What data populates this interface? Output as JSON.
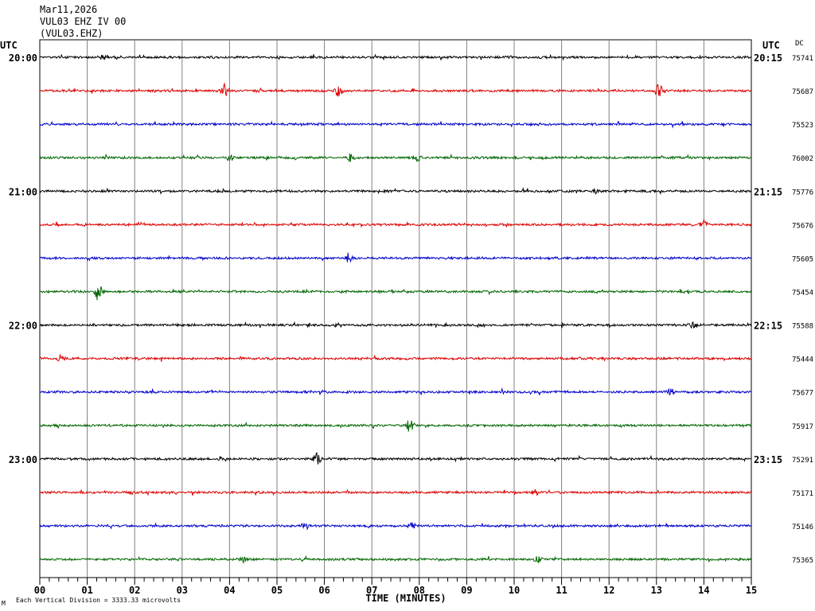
{
  "header": {
    "date": "Mar11,2026",
    "station": "VUL03 EHZ IV 00",
    "channel": "(VUL03.EHZ)"
  },
  "labels": {
    "left_utc": "UTC",
    "right_utc": "UTC",
    "dc": "DC",
    "footer_note": "Each Vertical Division = 3333.33 microvolts",
    "corner_mark": "M"
  },
  "chart_data": {
    "type": "line",
    "title": "",
    "xlabel": "TIME (MINUTES)",
    "ylabel": "",
    "xlim": [
      0,
      15
    ],
    "x_ticks": [
      "00",
      "01",
      "02",
      "03",
      "04",
      "05",
      "06",
      "07",
      "08",
      "09",
      "10",
      "11",
      "12",
      "13",
      "14",
      "15"
    ],
    "grid": true,
    "minutes_per_line": 15,
    "left_hour_labels": [
      "20:00",
      "21:00",
      "22:00",
      "23:00"
    ],
    "right_hour_labels": [
      "20:15",
      "21:15",
      "22:15",
      "23:15"
    ],
    "trace_colors": [
      "#000000",
      "#dd0000",
      "#0000cc",
      "#006600"
    ],
    "traces": [
      {
        "dc": "75741"
      },
      {
        "dc": "75687"
      },
      {
        "dc": "75523"
      },
      {
        "dc": "76002"
      },
      {
        "dc": "75776"
      },
      {
        "dc": "75676"
      },
      {
        "dc": "75605"
      },
      {
        "dc": "75454"
      },
      {
        "dc": "75588"
      },
      {
        "dc": "75444"
      },
      {
        "dc": "75677"
      },
      {
        "dc": "75917"
      },
      {
        "dc": "75291"
      },
      {
        "dc": "75171"
      },
      {
        "dc": "75146"
      },
      {
        "dc": "75365"
      }
    ],
    "events": [
      {
        "trace": 0,
        "minute": 1.3,
        "amplitude": 3
      },
      {
        "trace": 1,
        "minute": 3.9,
        "amplitude": 9
      },
      {
        "trace": 1,
        "minute": 6.3,
        "amplitude": 8
      },
      {
        "trace": 1,
        "minute": 13.05,
        "amplitude": 9
      },
      {
        "trace": 3,
        "minute": 4.0,
        "amplitude": 5
      },
      {
        "trace": 3,
        "minute": 6.55,
        "amplitude": 5
      },
      {
        "trace": 3,
        "minute": 7.95,
        "amplitude": 5
      },
      {
        "trace": 4,
        "minute": 11.7,
        "amplitude": 3
      },
      {
        "trace": 5,
        "minute": 14.0,
        "amplitude": 5
      },
      {
        "trace": 6,
        "minute": 6.5,
        "amplitude": 6
      },
      {
        "trace": 7,
        "minute": 1.25,
        "amplitude": 15
      },
      {
        "trace": 8,
        "minute": 13.75,
        "amplitude": 4
      },
      {
        "trace": 9,
        "minute": 0.45,
        "amplitude": 6
      },
      {
        "trace": 10,
        "minute": 13.3,
        "amplitude": 6
      },
      {
        "trace": 11,
        "minute": 7.8,
        "amplitude": 9
      },
      {
        "trace": 12,
        "minute": 5.85,
        "amplitude": 9
      },
      {
        "trace": 13,
        "minute": 10.45,
        "amplitude": 4
      },
      {
        "trace": 14,
        "minute": 7.85,
        "amplitude": 5
      },
      {
        "trace": 14,
        "minute": 5.6,
        "amplitude": 5
      },
      {
        "trace": 15,
        "minute": 4.3,
        "amplitude": 4
      },
      {
        "trace": 15,
        "minute": 10.5,
        "amplitude": 4
      }
    ]
  }
}
